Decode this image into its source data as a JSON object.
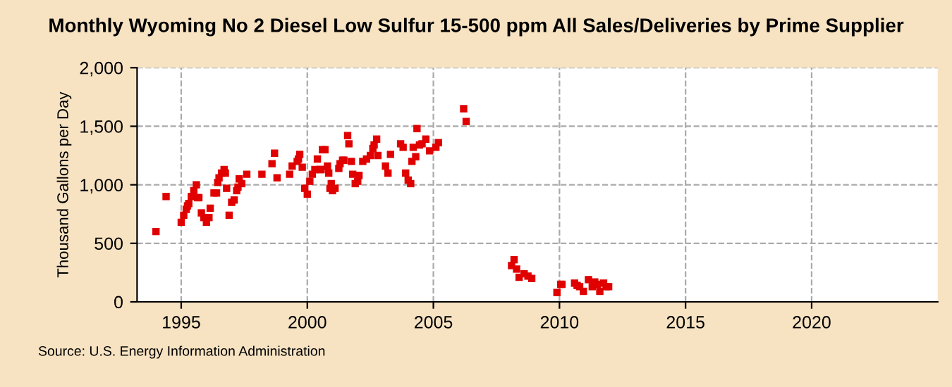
{
  "chart_data": {
    "type": "scatter",
    "title": "Monthly Wyoming No 2 Diesel Low Sulfur 15-500 ppm All Sales/Deliveries by Prime Supplier",
    "ylabel": "Thousand Gallons per Day",
    "annotations": [
      "Source: U.S. Energy Information Administration"
    ],
    "xlim": [
      1993.25,
      2025
    ],
    "xticks": [
      1995,
      2000,
      2005,
      2010,
      2015,
      2020
    ],
    "ylim": [
      0,
      2000
    ],
    "yticks": [
      {
        "value": 0,
        "label": "0"
      },
      {
        "value": 500,
        "label": "500"
      },
      {
        "value": 1000,
        "label": "1,000"
      },
      {
        "value": 1500,
        "label": "1,500"
      },
      {
        "value": 2000,
        "label": "2,000"
      }
    ],
    "grid": true,
    "marker": "square",
    "series": [
      {
        "color": "#e00000",
        "x": [
          1994.0,
          1994.4,
          1995.0,
          1995.1,
          1995.2,
          1995.25,
          1995.3,
          1995.4,
          1995.5,
          1995.6,
          1995.65,
          1995.7,
          1995.8,
          1995.9,
          1996.0,
          1996.1,
          1996.15,
          1996.3,
          1996.4,
          1996.45,
          1996.5,
          1996.6,
          1996.7,
          1996.75,
          1996.8,
          1996.9,
          1997.0,
          1997.1,
          1997.2,
          1997.25,
          1997.3,
          1997.4,
          1997.6,
          1998.2,
          1998.6,
          1998.7,
          1998.8,
          1999.3,
          1999.4,
          1999.6,
          1999.65,
          1999.7,
          1999.8,
          1999.9,
          2000.0,
          2000.1,
          2000.2,
          2000.3,
          2000.4,
          2000.5,
          2000.55,
          2000.6,
          2000.7,
          2000.8,
          2000.85,
          2000.9,
          2000.95,
          2001.0,
          2001.1,
          2001.25,
          2001.3,
          2001.4,
          2001.45,
          2001.6,
          2001.65,
          2001.75,
          2001.8,
          2001.9,
          2002.0,
          2002.05,
          2002.2,
          2002.35,
          2002.5,
          2002.6,
          2002.65,
          2002.75,
          2002.8,
          2003.1,
          2003.2,
          2003.3,
          2003.7,
          2003.8,
          2003.9,
          2004.0,
          2004.1,
          2004.15,
          2004.2,
          2004.3,
          2004.35,
          2004.45,
          2004.55,
          2004.7,
          2004.85,
          2005.1,
          2005.2,
          2006.2,
          2006.3,
          2008.1,
          2008.2,
          2008.3,
          2008.4,
          2008.6,
          2008.75,
          2008.9,
          2009.9,
          2010.05,
          2010.1,
          2010.6,
          2010.7,
          2010.8,
          2010.95,
          2011.15,
          2011.3,
          2011.4,
          2011.5,
          2011.6,
          2011.75,
          2011.85,
          2011.95
        ],
        "values": [
          600,
          900,
          680,
          740,
          790,
          820,
          840,
          900,
          950,
          1000,
          890,
          890,
          760,
          720,
          680,
          720,
          800,
          930,
          930,
          1020,
          1060,
          1100,
          1130,
          1100,
          970,
          740,
          850,
          870,
          950,
          980,
          1050,
          1010,
          1090,
          1090,
          1180,
          1270,
          1060,
          1090,
          1160,
          1200,
          1220,
          1260,
          1150,
          970,
          920,
          1030,
          1090,
          1130,
          1220,
          1130,
          1130,
          1300,
          1300,
          1160,
          1100,
          970,
          1010,
          950,
          970,
          1140,
          1180,
          1210,
          1210,
          1420,
          1350,
          1200,
          1090,
          1010,
          1030,
          1080,
          1200,
          1220,
          1250,
          1310,
          1340,
          1390,
          1250,
          1160,
          1100,
          1260,
          1350,
          1320,
          1100,
          1040,
          1010,
          1200,
          1320,
          1240,
          1480,
          1340,
          1350,
          1390,
          1290,
          1320,
          1360,
          1650,
          1540,
          310,
          360,
          280,
          210,
          240,
          220,
          200,
          80,
          150,
          150,
          160,
          140,
          130,
          90,
          190,
          130,
          170,
          150,
          90,
          160,
          130,
          130
        ]
      }
    ]
  }
}
